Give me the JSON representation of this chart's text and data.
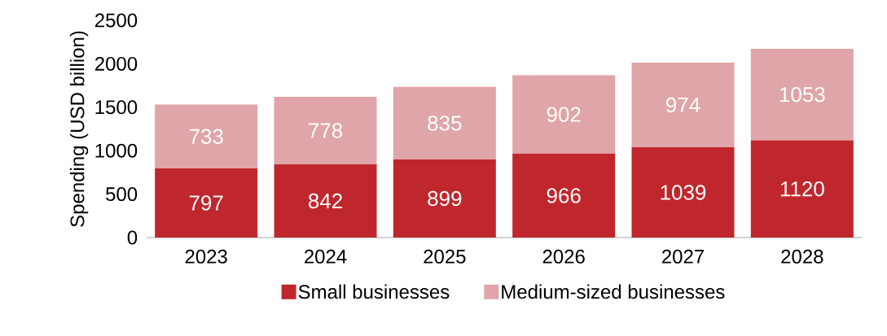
{
  "chart_data": {
    "type": "bar",
    "stacked": true,
    "ylabel": "Spending (USD billion)",
    "categories": [
      "2023",
      "2024",
      "2025",
      "2026",
      "2027",
      "2028"
    ],
    "series": [
      {
        "name": "Small businesses",
        "color": "#c0272d",
        "values": [
          797,
          842,
          899,
          966,
          1039,
          1120
        ]
      },
      {
        "name": "Medium-sized businesses",
        "color": "#dfa5a8",
        "values": [
          733,
          778,
          835,
          902,
          974,
          1053
        ]
      }
    ],
    "ylim": [
      0,
      2500
    ],
    "yticks": [
      0,
      500,
      1000,
      1500,
      2000,
      2500
    ],
    "grid": false,
    "legend": "bottom",
    "data_labels": true
  }
}
